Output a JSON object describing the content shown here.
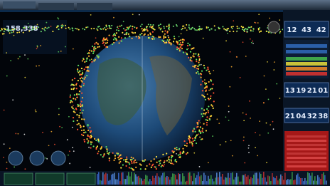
{
  "counter": "158,338",
  "clocks": [
    {
      "digits": [
        "12",
        "43",
        "42"
      ]
    },
    {
      "digits": [
        "13",
        "19",
        "21",
        "01"
      ]
    },
    {
      "digits": [
        "21",
        "04",
        "32",
        "38"
      ]
    }
  ]
}
